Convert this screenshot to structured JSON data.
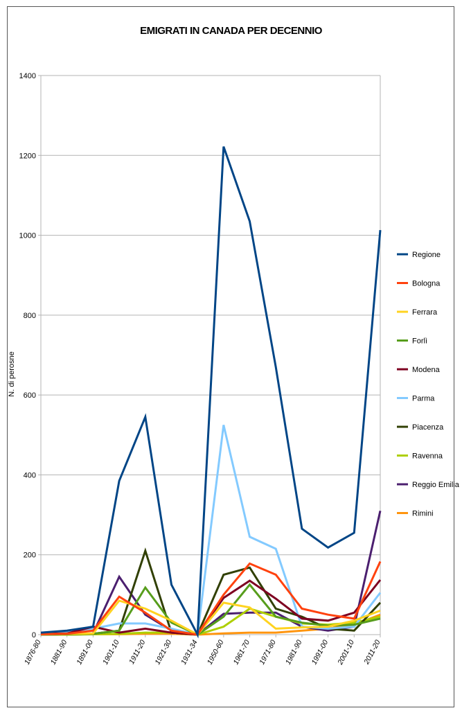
{
  "chart_data": {
    "type": "line",
    "title": "EMIGRATI IN CANADA PER DECENNIO",
    "xlabel": "",
    "ylabel": "N. di perosne",
    "ylim": [
      0,
      1400
    ],
    "yticks": [
      0,
      200,
      400,
      600,
      800,
      1000,
      1200,
      1400
    ],
    "grid": true,
    "legend_position": "right",
    "categories": [
      "1876-80",
      "1881-90",
      "1891-00",
      "1901-10",
      "1911-20",
      "1921-30",
      "1931-34",
      "1950-60",
      "1961-70",
      "1971-80",
      "1981-90",
      "1991-00",
      "2001-10",
      "2011-20"
    ],
    "series": [
      {
        "name": "Regione",
        "color": "#004586",
        "values": [
          5,
          10,
          20,
          385,
          545,
          125,
          0,
          1222,
          1035,
          670,
          265,
          218,
          255,
          1013
        ]
      },
      {
        "name": "Bologna",
        "color": "#ff420e",
        "values": [
          1,
          2,
          10,
          95,
          55,
          10,
          0,
          100,
          178,
          150,
          65,
          50,
          40,
          183
        ]
      },
      {
        "name": "Ferrara",
        "color": "#ffd320",
        "values": [
          1,
          2,
          3,
          85,
          65,
          35,
          0,
          80,
          68,
          15,
          18,
          20,
          35,
          60
        ]
      },
      {
        "name": "Forlì",
        "color": "#579d1c",
        "values": [
          0,
          1,
          2,
          10,
          118,
          30,
          0,
          45,
          125,
          45,
          30,
          22,
          25,
          40
        ]
      },
      {
        "name": "Modena",
        "color": "#7e0021",
        "values": [
          2,
          3,
          20,
          5,
          15,
          5,
          0,
          92,
          135,
          90,
          40,
          35,
          55,
          137
        ]
      },
      {
        "name": "Parma",
        "color": "#83caff",
        "values": [
          1,
          5,
          15,
          28,
          28,
          15,
          0,
          525,
          245,
          215,
          20,
          15,
          20,
          105
        ]
      },
      {
        "name": "Piacenza",
        "color": "#314004",
        "values": [
          0,
          1,
          2,
          10,
          210,
          5,
          0,
          150,
          168,
          65,
          45,
          15,
          10,
          80
        ]
      },
      {
        "name": "Ravenna",
        "color": "#aecf00",
        "values": [
          0,
          0,
          1,
          2,
          5,
          5,
          0,
          20,
          65,
          45,
          28,
          25,
          30,
          45
        ]
      },
      {
        "name": "Reggio Emilia",
        "color": "#4b1f6f",
        "values": [
          0,
          1,
          3,
          145,
          50,
          10,
          0,
          52,
          55,
          55,
          20,
          10,
          20,
          310
        ]
      },
      {
        "name": "Rimini",
        "color": "#ff950e",
        "values": [
          0,
          0,
          1,
          1,
          2,
          2,
          0,
          3,
          5,
          5,
          10,
          15,
          25,
          50
        ]
      }
    ]
  }
}
